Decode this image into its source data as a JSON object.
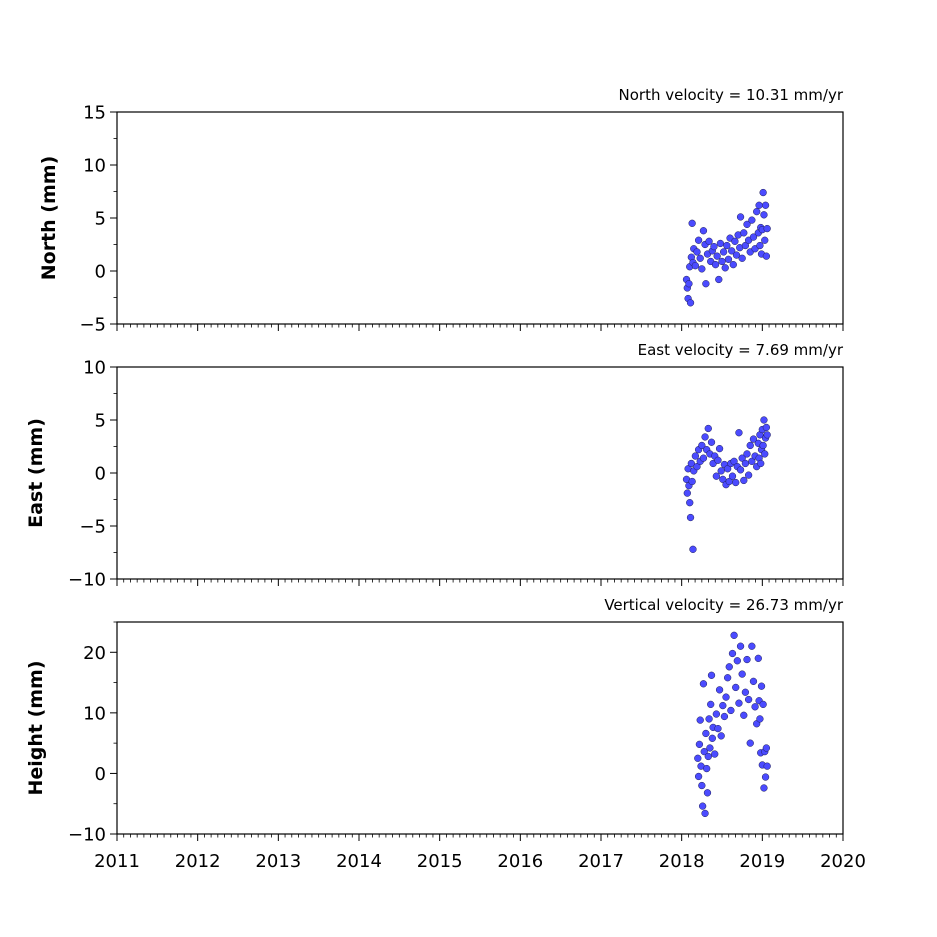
{
  "chart_data": [
    {
      "type": "scatter",
      "title": "North velocity = 10.31 mm/yr",
      "ylabel": "North (mm)",
      "xlim": [
        2011,
        2020
      ],
      "ylim": [
        -5,
        15
      ],
      "yticks": [
        -5,
        0,
        5,
        10,
        15
      ],
      "marker_color": "#4b4bff",
      "points": [
        [
          2018.06,
          -0.8
        ],
        [
          2018.07,
          -1.6
        ],
        [
          2018.08,
          -2.6
        ],
        [
          2018.09,
          -1.2
        ],
        [
          2018.1,
          0.4
        ],
        [
          2018.11,
          -3.0
        ],
        [
          2018.12,
          1.3
        ],
        [
          2018.13,
          4.5
        ],
        [
          2018.14,
          0.8
        ],
        [
          2018.15,
          2.1
        ],
        [
          2018.17,
          0.5
        ],
        [
          2018.19,
          1.8
        ],
        [
          2018.21,
          2.9
        ],
        [
          2018.23,
          1.2
        ],
        [
          2018.25,
          0.2
        ],
        [
          2018.27,
          3.8
        ],
        [
          2018.29,
          2.5
        ],
        [
          2018.3,
          -1.2
        ],
        [
          2018.32,
          1.6
        ],
        [
          2018.34,
          2.8
        ],
        [
          2018.36,
          0.9
        ],
        [
          2018.38,
          1.9
        ],
        [
          2018.4,
          2.3
        ],
        [
          2018.42,
          0.6
        ],
        [
          2018.44,
          1.4
        ],
        [
          2018.46,
          -0.8
        ],
        [
          2018.48,
          2.6
        ],
        [
          2018.5,
          0.9
        ],
        [
          2018.52,
          1.8
        ],
        [
          2018.54,
          0.3
        ],
        [
          2018.56,
          2.4
        ],
        [
          2018.58,
          1.1
        ],
        [
          2018.6,
          3.1
        ],
        [
          2018.62,
          1.9
        ],
        [
          2018.64,
          0.6
        ],
        [
          2018.66,
          2.8
        ],
        [
          2018.68,
          1.5
        ],
        [
          2018.7,
          3.4
        ],
        [
          2018.72,
          2.2
        ],
        [
          2018.73,
          5.1
        ],
        [
          2018.75,
          1.2
        ],
        [
          2018.77,
          3.6
        ],
        [
          2018.79,
          2.4
        ],
        [
          2018.81,
          4.4
        ],
        [
          2018.83,
          2.9
        ],
        [
          2018.85,
          1.8
        ],
        [
          2018.87,
          4.8
        ],
        [
          2018.89,
          3.2
        ],
        [
          2018.91,
          2.1
        ],
        [
          2018.93,
          5.6
        ],
        [
          2018.95,
          3.6
        ],
        [
          2018.96,
          6.2
        ],
        [
          2018.97,
          2.4
        ],
        [
          2018.98,
          4.1
        ],
        [
          2018.99,
          1.6
        ],
        [
          2019.0,
          3.9
        ],
        [
          2019.01,
          7.4
        ],
        [
          2019.02,
          5.3
        ],
        [
          2019.03,
          2.9
        ],
        [
          2019.04,
          6.2
        ],
        [
          2019.05,
          1.4
        ],
        [
          2019.06,
          4.0
        ]
      ]
    },
    {
      "type": "scatter",
      "title": "East velocity = 7.69 mm/yr",
      "ylabel": "East (mm)",
      "xlim": [
        2011,
        2020
      ],
      "ylim": [
        -10,
        10
      ],
      "yticks": [
        -10,
        -5,
        0,
        5,
        10
      ],
      "marker_color": "#4b4bff",
      "points": [
        [
          2018.06,
          -0.6
        ],
        [
          2018.07,
          -1.9
        ],
        [
          2018.08,
          0.4
        ],
        [
          2018.09,
          -1.2
        ],
        [
          2018.1,
          -2.8
        ],
        [
          2018.11,
          -4.2
        ],
        [
          2018.12,
          0.9
        ],
        [
          2018.13,
          -0.8
        ],
        [
          2018.14,
          -7.2
        ],
        [
          2018.15,
          0.2
        ],
        [
          2018.17,
          1.6
        ],
        [
          2018.19,
          0.6
        ],
        [
          2018.21,
          2.2
        ],
        [
          2018.23,
          1.1
        ],
        [
          2018.25,
          2.6
        ],
        [
          2018.27,
          1.4
        ],
        [
          2018.29,
          3.4
        ],
        [
          2018.31,
          2.2
        ],
        [
          2018.33,
          4.2
        ],
        [
          2018.35,
          1.8
        ],
        [
          2018.37,
          2.9
        ],
        [
          2018.39,
          0.9
        ],
        [
          2018.41,
          1.6
        ],
        [
          2018.43,
          -0.3
        ],
        [
          2018.45,
          1.2
        ],
        [
          2018.47,
          2.3
        ],
        [
          2018.49,
          0.2
        ],
        [
          2018.51,
          -0.6
        ],
        [
          2018.53,
          0.8
        ],
        [
          2018.55,
          -1.1
        ],
        [
          2018.57,
          0.4
        ],
        [
          2018.59,
          -0.8
        ],
        [
          2018.61,
          0.9
        ],
        [
          2018.63,
          -0.3
        ],
        [
          2018.65,
          1.1
        ],
        [
          2018.67,
          -0.9
        ],
        [
          2018.69,
          0.6
        ],
        [
          2018.71,
          3.8
        ],
        [
          2018.73,
          0.3
        ],
        [
          2018.75,
          1.4
        ],
        [
          2018.77,
          -0.7
        ],
        [
          2018.79,
          0.9
        ],
        [
          2018.81,
          1.8
        ],
        [
          2018.83,
          -0.2
        ],
        [
          2018.85,
          2.6
        ],
        [
          2018.87,
          1.1
        ],
        [
          2018.89,
          3.2
        ],
        [
          2018.91,
          1.6
        ],
        [
          2018.93,
          0.6
        ],
        [
          2018.95,
          2.8
        ],
        [
          2018.96,
          1.4
        ],
        [
          2018.97,
          3.6
        ],
        [
          2018.98,
          0.9
        ],
        [
          2018.99,
          2.2
        ],
        [
          2019.0,
          4.1
        ],
        [
          2019.01,
          2.6
        ],
        [
          2019.02,
          5.0
        ],
        [
          2019.03,
          1.8
        ],
        [
          2019.04,
          3.3
        ],
        [
          2019.05,
          4.3
        ],
        [
          2019.06,
          3.6
        ]
      ]
    },
    {
      "type": "scatter",
      "title": "Vertical velocity = 26.73 mm/yr",
      "ylabel": "Height (mm)",
      "xlim": [
        2011,
        2020
      ],
      "ylim": [
        -10,
        25
      ],
      "yticks": [
        -10,
        0,
        10,
        20
      ],
      "xticks": [
        2011,
        2012,
        2013,
        2014,
        2015,
        2016,
        2017,
        2018,
        2019,
        2020
      ],
      "marker_color": "#4b4bff",
      "points": [
        [
          2018.2,
          2.5
        ],
        [
          2018.21,
          -0.5
        ],
        [
          2018.22,
          4.8
        ],
        [
          2018.23,
          8.8
        ],
        [
          2018.24,
          1.2
        ],
        [
          2018.25,
          -2.0
        ],
        [
          2018.26,
          -5.4
        ],
        [
          2018.27,
          14.8
        ],
        [
          2018.28,
          3.6
        ],
        [
          2018.29,
          -6.6
        ],
        [
          2018.3,
          6.6
        ],
        [
          2018.31,
          0.8
        ],
        [
          2018.32,
          -3.2
        ],
        [
          2018.33,
          2.8
        ],
        [
          2018.34,
          9.0
        ],
        [
          2018.35,
          4.2
        ],
        [
          2018.36,
          11.4
        ],
        [
          2018.37,
          16.2
        ],
        [
          2018.38,
          5.8
        ],
        [
          2018.39,
          7.6
        ],
        [
          2018.41,
          3.2
        ],
        [
          2018.43,
          9.8
        ],
        [
          2018.45,
          7.4
        ],
        [
          2018.47,
          13.8
        ],
        [
          2018.49,
          6.2
        ],
        [
          2018.51,
          11.2
        ],
        [
          2018.53,
          9.4
        ],
        [
          2018.55,
          12.6
        ],
        [
          2018.57,
          15.8
        ],
        [
          2018.59,
          17.6
        ],
        [
          2018.61,
          10.4
        ],
        [
          2018.63,
          19.8
        ],
        [
          2018.65,
          22.8
        ],
        [
          2018.67,
          14.2
        ],
        [
          2018.69,
          18.6
        ],
        [
          2018.71,
          11.6
        ],
        [
          2018.73,
          21.0
        ],
        [
          2018.75,
          16.4
        ],
        [
          2018.77,
          9.6
        ],
        [
          2018.79,
          13.4
        ],
        [
          2018.81,
          18.8
        ],
        [
          2018.83,
          12.2
        ],
        [
          2018.85,
          5.0
        ],
        [
          2018.87,
          21.0
        ],
        [
          2018.89,
          15.2
        ],
        [
          2018.91,
          11.0
        ],
        [
          2018.93,
          8.2
        ],
        [
          2018.95,
          19.0
        ],
        [
          2018.96,
          12.0
        ],
        [
          2018.97,
          9.0
        ],
        [
          2018.98,
          3.4
        ],
        [
          2018.99,
          14.4
        ],
        [
          2019.0,
          1.4
        ],
        [
          2019.01,
          11.4
        ],
        [
          2019.02,
          -2.4
        ],
        [
          2019.03,
          3.6
        ],
        [
          2019.04,
          -0.6
        ],
        [
          2019.05,
          4.2
        ],
        [
          2019.06,
          1.2
        ]
      ]
    }
  ]
}
